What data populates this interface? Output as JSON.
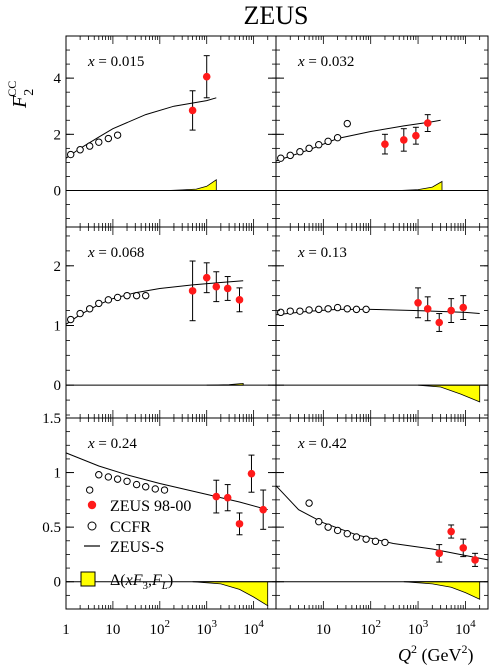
{
  "figure": {
    "title": "ZEUS",
    "ylabel": "F",
    "ylabel_sub": "2",
    "ylabel_sup": "CC",
    "xlabel_q": "Q",
    "xlabel_exp": "2",
    "xlabel_unit_pre": " (GeV",
    "xlabel_unit_exp": "2",
    "xlabel_unit_post": ")"
  },
  "legend": {
    "zeus": "ZEUS 98-00",
    "ccfr": "CCFR",
    "zeus_s": "ZEUS-S",
    "band_pre": "Δ(",
    "band_x": "x",
    "band_mid": "F",
    "band_sub1": "3",
    "band_comma": ",",
    "band_f": "F",
    "band_sub2": "L",
    "band_post": ")"
  },
  "chart_data": {
    "type": "scatter",
    "title": "ZEUS",
    "x_axis": {
      "label": "Q² (GeV²)",
      "scale": "log",
      "range": [
        1,
        30000
      ],
      "ticks": [
        "1",
        "10",
        "10²",
        "10³",
        "10⁴"
      ]
    },
    "y_axis": {
      "label": "F₂^CC"
    },
    "legend_placement": "bottom-left panel",
    "colors": {
      "zeus": "#ff1a1a",
      "band": "#ffff00"
    },
    "series_names": [
      "ZEUS 98-00",
      "CCFR",
      "ZEUS-S",
      "Δ(xF3,FL)"
    ],
    "panels": [
      {
        "x_label": "x = 0.015",
        "ylim": [
          -1.3,
          5.5
        ],
        "yticks": [
          0,
          2,
          4
        ],
        "ytick_labels": [
          "0",
          "2",
          "4"
        ],
        "zeus": [
          [
            500,
            2.85,
            0.7
          ],
          [
            1000,
            4.05,
            0.75
          ]
        ],
        "ccfr": [
          [
            1.26,
            1.28
          ],
          [
            2,
            1.45
          ],
          [
            3.2,
            1.58
          ],
          [
            5,
            1.72
          ],
          [
            8,
            1.85
          ],
          [
            12.6,
            1.97
          ]
        ],
        "fit": [
          [
            1,
            1.15
          ],
          [
            2,
            1.5
          ],
          [
            5,
            1.9
          ],
          [
            10,
            2.2
          ],
          [
            50,
            2.7
          ],
          [
            200,
            3.0
          ],
          [
            1000,
            3.2
          ],
          [
            1600,
            3.3
          ]
        ],
        "band": [
          [
            150,
            0.0
          ],
          [
            300,
            0.02
          ],
          [
            600,
            0.05
          ],
          [
            1000,
            0.15
          ],
          [
            1600,
            0.38
          ]
        ]
      },
      {
        "x_label": "x = 0.032",
        "ylim": [
          -1.3,
          5.5
        ],
        "yticks": [
          0,
          2,
          4
        ],
        "ytick_labels": [],
        "zeus": [
          [
            200,
            1.65,
            0.35
          ],
          [
            500,
            1.8,
            0.4
          ],
          [
            900,
            1.95,
            0.3
          ],
          [
            1600,
            2.4,
            0.3
          ]
        ],
        "ccfr": [
          [
            1.26,
            1.15
          ],
          [
            2,
            1.25
          ],
          [
            3.2,
            1.38
          ],
          [
            5,
            1.5
          ],
          [
            8,
            1.63
          ],
          [
            12.6,
            1.75
          ],
          [
            20,
            1.88
          ],
          [
            32,
            2.38
          ]
        ],
        "fit": [
          [
            1,
            1.05
          ],
          [
            5,
            1.45
          ],
          [
            20,
            1.85
          ],
          [
            100,
            2.1
          ],
          [
            500,
            2.3
          ],
          [
            2000,
            2.45
          ],
          [
            3000,
            2.5
          ]
        ],
        "band": [
          [
            400,
            0.0
          ],
          [
            1000,
            0.03
          ],
          [
            2000,
            0.12
          ],
          [
            3200,
            0.32
          ]
        ]
      },
      {
        "x_label": "x = 0.068",
        "ylim": [
          -0.55,
          2.65
        ],
        "yticks": [
          0,
          1,
          2
        ],
        "ytick_labels": [
          "0",
          "1",
          "2"
        ],
        "zeus": [
          [
            500,
            1.58,
            0.5
          ],
          [
            1000,
            1.8,
            0.25
          ],
          [
            1600,
            1.65,
            0.25
          ],
          [
            2800,
            1.62,
            0.2
          ],
          [
            5000,
            1.43,
            0.2
          ]
        ],
        "ccfr": [
          [
            1.26,
            1.1
          ],
          [
            2,
            1.2
          ],
          [
            3.2,
            1.28
          ],
          [
            5,
            1.37
          ],
          [
            8,
            1.43
          ],
          [
            12.6,
            1.47
          ],
          [
            20,
            1.5
          ],
          [
            32,
            1.5
          ],
          [
            50,
            1.5
          ]
        ],
        "fit": [
          [
            1,
            1.02
          ],
          [
            2,
            1.18
          ],
          [
            5,
            1.35
          ],
          [
            10,
            1.45
          ],
          [
            30,
            1.55
          ],
          [
            100,
            1.62
          ],
          [
            500,
            1.68
          ],
          [
            2000,
            1.72
          ],
          [
            6000,
            1.75
          ]
        ],
        "band": [
          [
            1000,
            0.0
          ],
          [
            3000,
            0.01
          ],
          [
            6000,
            0.03
          ]
        ]
      },
      {
        "x_label": "x = 0.13",
        "ylim": [
          -0.55,
          2.65
        ],
        "yticks": [
          0,
          1,
          2
        ],
        "ytick_labels": [],
        "zeus": [
          [
            1000,
            1.38,
            0.25
          ],
          [
            1600,
            1.28,
            0.2
          ],
          [
            2800,
            1.05,
            0.15
          ],
          [
            5000,
            1.25,
            0.2
          ],
          [
            9000,
            1.3,
            0.2
          ]
        ],
        "ccfr": [
          [
            1.26,
            1.22
          ],
          [
            2,
            1.24
          ],
          [
            3.2,
            1.24
          ],
          [
            5,
            1.26
          ],
          [
            8,
            1.27
          ],
          [
            12.6,
            1.28
          ],
          [
            20,
            1.3
          ],
          [
            32,
            1.28
          ],
          [
            50,
            1.27
          ],
          [
            80,
            1.27
          ]
        ],
        "fit": [
          [
            1,
            1.18
          ],
          [
            5,
            1.24
          ],
          [
            20,
            1.27
          ],
          [
            100,
            1.27
          ],
          [
            1000,
            1.25
          ],
          [
            10000,
            1.22
          ],
          [
            20000,
            1.2
          ]
        ],
        "band": [
          [
            1000,
            0.0
          ],
          [
            3000,
            -0.03
          ],
          [
            8000,
            -0.15
          ],
          [
            20000,
            -0.28
          ]
        ]
      },
      {
        "x_label": "x = 0.24",
        "ylim": [
          -0.25,
          1.5
        ],
        "yticks": [
          0,
          0.5,
          1,
          1.5
        ],
        "ytick_labels": [
          "0",
          "0.5",
          "1",
          "1.5"
        ],
        "zeus": [
          [
            1600,
            0.78,
            0.15
          ],
          [
            2800,
            0.77,
            0.12
          ],
          [
            5000,
            0.53,
            0.1
          ],
          [
            9000,
            0.99,
            0.17
          ],
          [
            16000,
            0.66,
            0.18
          ]
        ],
        "ccfr": [
          [
            3.2,
            0.84
          ],
          [
            5,
            0.98
          ],
          [
            8,
            0.96
          ],
          [
            12.6,
            0.94
          ],
          [
            20,
            0.92
          ],
          [
            32,
            0.89
          ],
          [
            50,
            0.87
          ],
          [
            80,
            0.85
          ],
          [
            126,
            0.84
          ]
        ],
        "fit": [
          [
            1,
            1.18
          ],
          [
            5,
            1.06
          ],
          [
            20,
            0.98
          ],
          [
            100,
            0.9
          ],
          [
            1000,
            0.8
          ],
          [
            5000,
            0.73
          ],
          [
            20000,
            0.66
          ]
        ],
        "band": [
          [
            500,
            0.0
          ],
          [
            2000,
            -0.02
          ],
          [
            5000,
            -0.07
          ],
          [
            10000,
            -0.14
          ],
          [
            20000,
            -0.22
          ]
        ]
      },
      {
        "x_label": "x = 0.42",
        "ylim": [
          -0.25,
          1.5
        ],
        "yticks": [
          0,
          0.5,
          1,
          1.5
        ],
        "ytick_labels": [],
        "zeus": [
          [
            2800,
            0.26,
            0.08
          ],
          [
            5000,
            0.46,
            0.06
          ],
          [
            9000,
            0.31,
            0.08
          ],
          [
            16000,
            0.2,
            0.06
          ]
        ],
        "ccfr": [
          [
            5,
            0.72
          ],
          [
            8,
            0.55
          ],
          [
            12.6,
            0.5
          ],
          [
            20,
            0.47
          ],
          [
            32,
            0.44
          ],
          [
            50,
            0.41
          ],
          [
            80,
            0.39
          ],
          [
            126,
            0.37
          ],
          [
            200,
            0.36
          ]
        ],
        "fit": [
          [
            1,
            0.88
          ],
          [
            3,
            0.66
          ],
          [
            10,
            0.54
          ],
          [
            50,
            0.43
          ],
          [
            300,
            0.35
          ],
          [
            2000,
            0.3
          ],
          [
            10000,
            0.24
          ],
          [
            30000,
            0.2
          ]
        ],
        "band": [
          [
            500,
            0.0
          ],
          [
            2000,
            -0.02
          ],
          [
            5000,
            -0.05
          ],
          [
            10000,
            -0.1
          ],
          [
            20000,
            -0.16
          ]
        ]
      }
    ]
  }
}
